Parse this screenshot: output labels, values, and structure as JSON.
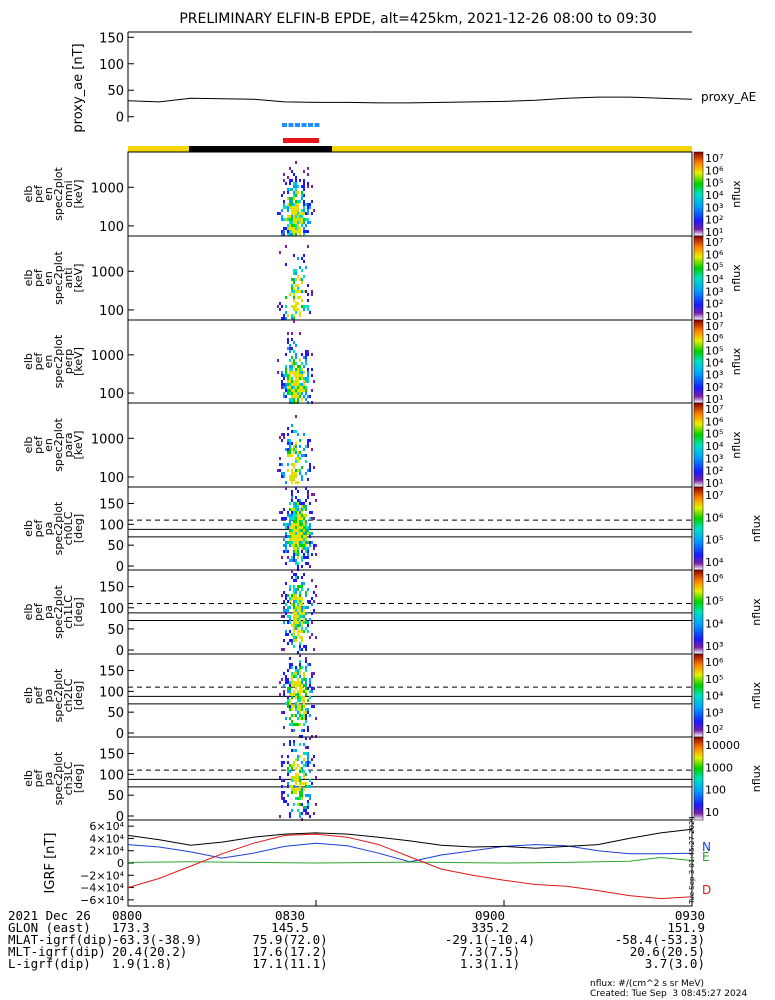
{
  "title": "PRELIMINARY ELFIN-B EPDE, alt=425km, 2021-12-26 08:00 to 09:30",
  "colors": {
    "frame": "#000000",
    "science_zone": "#1e90ff",
    "fast_survey": "#e8141a",
    "orbit_day": "#f5d400",
    "orbit_night": "#000000",
    "grf_n": "#1f3fd6",
    "grf_e": "#2aa52a",
    "grf_d": "#e0171b"
  },
  "chart_data": [
    {
      "id": "proxy_ae",
      "type": "line",
      "ylabel": "proxy_ae [nT]",
      "legend": "proxy_AE",
      "ylim": [
        -10,
        160
      ],
      "yticks": [
        "150",
        "100",
        "50",
        "0"
      ],
      "x_minutes": [
        0,
        5,
        10,
        15,
        20,
        25,
        30,
        35,
        40,
        45,
        50,
        55,
        60,
        65,
        70,
        75,
        80,
        85,
        90
      ],
      "values": [
        30,
        28,
        35,
        34,
        33,
        28,
        27,
        27,
        26,
        26,
        27,
        28,
        29,
        31,
        35,
        37,
        37,
        35,
        33
      ]
    },
    {
      "id": "energy_spectrograms",
      "type": "heatmap",
      "panels": [
        {
          "ylabel": [
            "elb",
            "pef",
            "en",
            "spec2plot",
            "omni",
            "[keV]"
          ],
          "yticks": [
            "1000",
            "100"
          ],
          "cbar": [
            "10⁷",
            "10⁶",
            "10⁵",
            "10⁴",
            "10³",
            "10²",
            "10¹"
          ],
          "cbar_label": "nflux"
        },
        {
          "ylabel": [
            "elb",
            "pef",
            "en",
            "spec2plot",
            "anti",
            "[keV]"
          ],
          "yticks": [
            "1000",
            "100"
          ],
          "cbar": [
            "10⁷",
            "10⁶",
            "10⁵",
            "10⁴",
            "10³",
            "10²",
            "10¹"
          ],
          "cbar_label": "nflux"
        },
        {
          "ylabel": [
            "elb",
            "pef",
            "en",
            "spec2plot",
            "perp",
            "[keV]"
          ],
          "yticks": [
            "1000",
            "100"
          ],
          "cbar": [
            "10⁷",
            "10⁶",
            "10⁵",
            "10⁴",
            "10³",
            "10²",
            "10¹"
          ],
          "cbar_label": "nflux"
        },
        {
          "ylabel": [
            "elb",
            "pef",
            "en",
            "spec2plot",
            "para",
            "[keV]"
          ],
          "yticks": [
            "1000",
            "100"
          ],
          "cbar": [
            "10⁷",
            "10⁶",
            "10⁵",
            "10⁴",
            "10³",
            "10²",
            "10¹"
          ],
          "cbar_label": "nflux"
        }
      ]
    },
    {
      "id": "pitch_angle_spectrograms",
      "type": "heatmap",
      "yticks": [
        "150",
        "100",
        "50",
        "0"
      ],
      "panels": [
        {
          "ylabel": [
            "elb",
            "pef",
            "pa",
            "spec2plot",
            "ch0LC",
            "[deg]"
          ],
          "cbar": [
            "10⁷",
            "10⁶",
            "10⁵",
            "10⁴"
          ],
          "cbar_label": "nflux"
        },
        {
          "ylabel": [
            "elb",
            "pef",
            "pa",
            "spec2plot",
            "ch1LC",
            "[deg]"
          ],
          "cbar": [
            "10⁶",
            "10⁵",
            "10⁴",
            "10³"
          ],
          "cbar_label": "nflux"
        },
        {
          "ylabel": [
            "elb",
            "pef",
            "pa",
            "spec2plot",
            "ch2LC",
            "[deg]"
          ],
          "cbar": [
            "10⁶",
            "10⁵",
            "10⁴",
            "10³",
            "10²"
          ],
          "cbar_label": "nflux"
        },
        {
          "ylabel": [
            "elb",
            "pef",
            "pa",
            "spec2plot",
            "ch3LC",
            "[deg]"
          ],
          "cbar": [
            "10000",
            "1000",
            "100",
            "10"
          ],
          "cbar_label": "nflux"
        }
      ]
    },
    {
      "id": "igrf",
      "type": "line",
      "ylabel": "IGRF [nT]",
      "ylim": [
        -70000,
        70000
      ],
      "yticks": [
        "6×10⁴",
        "4×10⁴",
        "2×10⁴",
        "0",
        "−2×10⁴",
        "−4×10⁴",
        "−6×10⁴"
      ],
      "x_minutes": [
        0,
        5,
        10,
        15,
        20,
        25,
        30,
        35,
        40,
        45,
        50,
        55,
        60,
        65,
        70,
        75,
        80,
        85,
        90
      ],
      "series": [
        {
          "name": "N",
          "values": [
            30000,
            26000,
            18000,
            8000,
            16000,
            27000,
            32000,
            28000,
            16000,
            2000,
            13000,
            20000,
            27000,
            30000,
            28000,
            20000,
            15000,
            15000,
            16000
          ]
        },
        {
          "name": "E",
          "values": [
            1000,
            1500,
            2000,
            1500,
            1000,
            500,
            0,
            500,
            1000,
            1500,
            1000,
            500,
            0,
            500,
            1000,
            2000,
            3000,
            9000,
            4000
          ]
        },
        {
          "name": "D",
          "values": [
            -40000,
            -25000,
            -5000,
            15000,
            32000,
            45000,
            47000,
            42000,
            30000,
            10000,
            -10000,
            -20000,
            -28000,
            -35000,
            -38000,
            -45000,
            -53000,
            -58000,
            -55000
          ]
        },
        {
          "name": "",
          "values": [
            45000,
            38000,
            29000,
            34000,
            42000,
            47000,
            49000,
            47000,
            42000,
            36000,
            29000,
            26000,
            27000,
            24000,
            27000,
            30000,
            40000,
            49000,
            55000
          ]
        }
      ],
      "series_labels": [
        "N",
        "E",
        "D"
      ],
      "side_text": "Tue Sep  3 01:45:27 2024"
    }
  ],
  "footer": {
    "rows": [
      [
        "2021 Dec 26",
        "0800",
        "0830",
        "0900",
        "0930"
      ],
      [
        "GLON (east)",
        "173.3",
        "145.5",
        "335.2",
        "151.9"
      ],
      [
        "MLAT-igrf(dip)",
        "-63.3(-38.9)",
        "75.9(72.0)",
        "-29.1(-10.4)",
        "-58.4(-53.3)"
      ],
      [
        "MLT-igrf(dip)",
        "20.4(20.2)",
        "17.6(17.2)",
        "7.3(7.5)",
        "20.6(20.5)"
      ],
      [
        "L-igrf(dip)",
        "1.9(1.8)",
        "17.1(11.1)",
        "1.3(1.1)",
        "3.7(3.0)"
      ]
    ],
    "units_note": "nflux: #/(cm^2 s sr MeV)",
    "created": "Created: Tue Sep  3 08:45:27 2024"
  }
}
